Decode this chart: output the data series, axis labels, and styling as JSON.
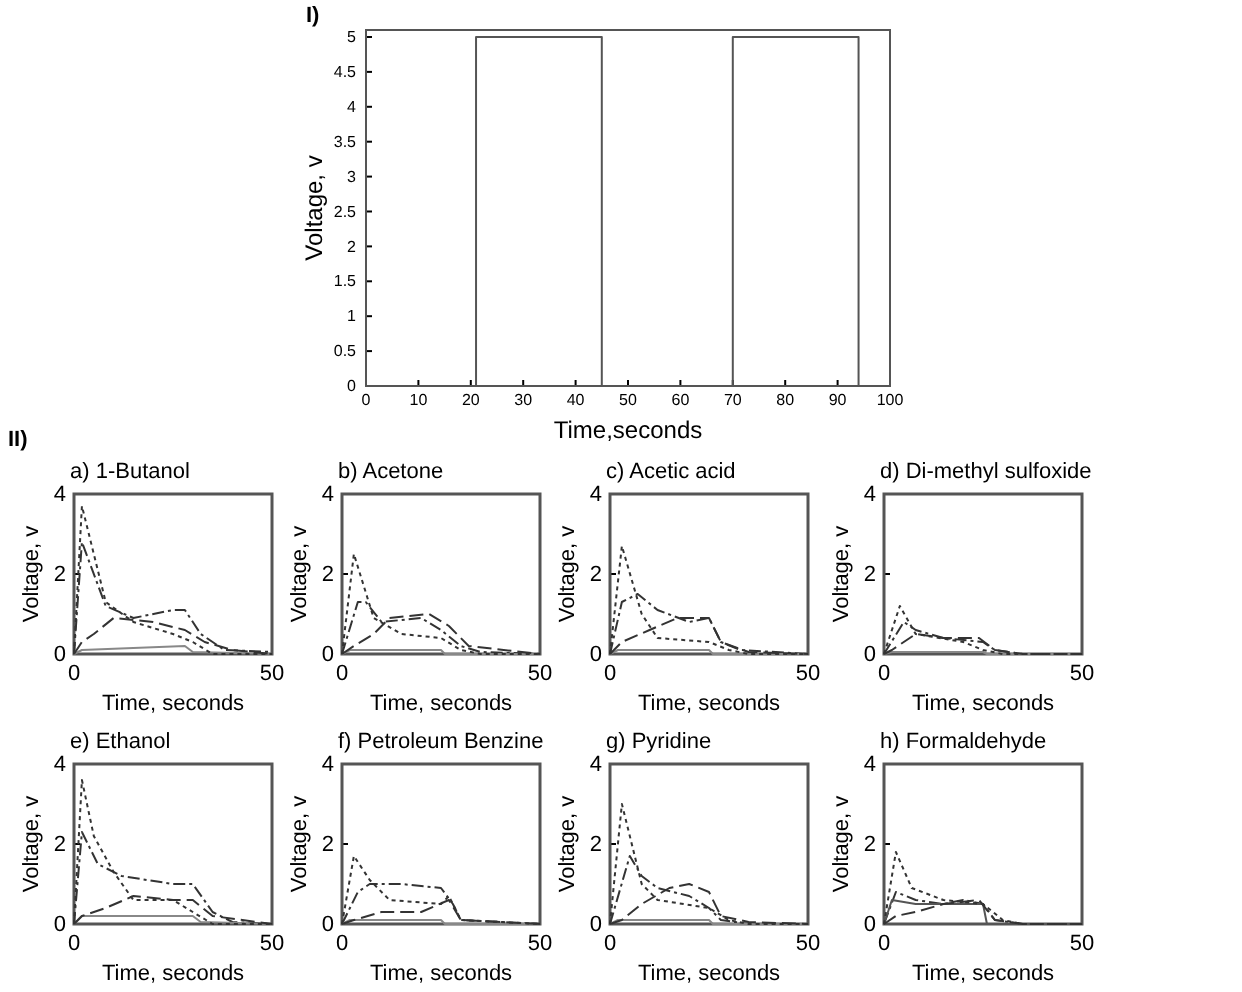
{
  "chart_data": [
    {
      "type": "line",
      "xlabel": "Time,seconds",
      "ylabel": "Voltage, v",
      "annotations": [
        "I)"
      ],
      "xlim": [
        0,
        100
      ],
      "ylim": [
        0,
        5.1
      ],
      "xticks": [
        0,
        10,
        20,
        30,
        40,
        50,
        60,
        70,
        80,
        90,
        100
      ],
      "yticks": [
        0,
        0.5,
        1,
        1.5,
        2,
        2.5,
        3,
        3.5,
        4,
        4.5,
        5
      ],
      "series": [
        {
          "color": "#555555",
          "line_style": "solid",
          "x": [
            0,
            21,
            21,
            45,
            45,
            70,
            70,
            94,
            94,
            95
          ],
          "values": [
            0,
            0,
            5,
            5,
            0,
            0,
            5,
            5,
            0,
            0
          ]
        }
      ]
    },
    {
      "type": "line",
      "title": "a)  1-Butanol",
      "xlabel": "Time, seconds",
      "ylabel": "Voltage, v",
      "annotations": [
        "II)"
      ],
      "xlim": [
        0,
        50
      ],
      "ylim": [
        0,
        4
      ],
      "xticks": [
        0,
        50
      ],
      "yticks": [
        0,
        2,
        4
      ],
      "series": [
        {
          "color": "#333333",
          "line_style": "dashdot",
          "x": [
            0,
            2,
            8,
            15,
            25,
            28,
            32,
            38,
            50
          ],
          "values": [
            0,
            2.8,
            1.2,
            0.9,
            1.1,
            1.1,
            0.5,
            0.1,
            0.05
          ]
        },
        {
          "color": "#888888",
          "line_style": "solid",
          "x": [
            0,
            2,
            28,
            30,
            50
          ],
          "values": [
            0,
            0.1,
            0.2,
            0.05,
            0
          ]
        },
        {
          "color": "#333333",
          "line_style": "dashed",
          "x": [
            0,
            2,
            5,
            10,
            20,
            28,
            33,
            40,
            50
          ],
          "values": [
            0,
            0.3,
            0.5,
            0.9,
            0.8,
            0.6,
            0.3,
            0.1,
            0
          ]
        },
        {
          "color": "#333333",
          "line_style": "dotted",
          "x": [
            0,
            2,
            8,
            15,
            25,
            30,
            35,
            50
          ],
          "values": [
            0,
            3.7,
            1.3,
            0.8,
            0.5,
            0.3,
            0,
            0
          ]
        }
      ]
    },
    {
      "type": "line",
      "title": "b)  Acetone",
      "xlabel": "Time, seconds",
      "ylabel": "Voltage, v",
      "xlim": [
        0,
        50
      ],
      "ylim": [
        0,
        4
      ],
      "xticks": [
        0,
        50
      ],
      "yticks": [
        0,
        2,
        4
      ],
      "series": [
        {
          "color": "#333333",
          "line_style": "dashdot",
          "x": [
            0,
            4,
            6,
            10,
            20,
            25,
            30,
            35,
            50
          ],
          "values": [
            0,
            1.3,
            1.3,
            0.8,
            0.9,
            0.6,
            0.2,
            0.05,
            0
          ]
        },
        {
          "color": "#888888",
          "line_style": "solid",
          "x": [
            0,
            2,
            25,
            26,
            50
          ],
          "values": [
            0,
            0.1,
            0.1,
            0,
            0
          ]
        },
        {
          "color": "#333333",
          "line_style": "dashed",
          "x": [
            0,
            3,
            8,
            12,
            22,
            27,
            32,
            50
          ],
          "values": [
            0,
            0.2,
            0.5,
            0.9,
            1.0,
            0.7,
            0.2,
            0
          ]
        },
        {
          "color": "#333333",
          "line_style": "dotted",
          "x": [
            0,
            3,
            8,
            15,
            25,
            30,
            35,
            50
          ],
          "values": [
            0,
            2.5,
            0.9,
            0.5,
            0.4,
            0.1,
            0,
            0
          ]
        }
      ]
    },
    {
      "type": "line",
      "title": "c)  Acetic acid",
      "xlabel": "Time, seconds",
      "ylabel": "Voltage, v",
      "xlim": [
        0,
        50
      ],
      "ylim": [
        0,
        4
      ],
      "xticks": [
        0,
        50
      ],
      "yticks": [
        0,
        2,
        4
      ],
      "series": [
        {
          "color": "#333333",
          "line_style": "dashdot",
          "x": [
            0,
            3,
            7,
            12,
            20,
            25,
            28,
            33,
            50
          ],
          "values": [
            0,
            1.3,
            1.5,
            1.1,
            0.8,
            0.9,
            0.3,
            0.1,
            0
          ]
        },
        {
          "color": "#888888",
          "line_style": "solid",
          "x": [
            0,
            2,
            25,
            26,
            50
          ],
          "values": [
            0,
            0.1,
            0.1,
            0,
            0
          ]
        },
        {
          "color": "#333333",
          "line_style": "dashed",
          "x": [
            0,
            3,
            10,
            17,
            25,
            28,
            35,
            50
          ],
          "values": [
            0,
            0.3,
            0.6,
            0.9,
            0.9,
            0.3,
            0.05,
            0
          ]
        },
        {
          "color": "#333333",
          "line_style": "dotted",
          "x": [
            0,
            3,
            8,
            12,
            25,
            30,
            35,
            50
          ],
          "values": [
            0,
            2.7,
            1.0,
            0.4,
            0.3,
            0.1,
            0,
            0
          ]
        }
      ]
    },
    {
      "type": "line",
      "title": "d)  Di-methyl sulfoxide",
      "xlabel": "Time, seconds",
      "ylabel": "Voltage, v",
      "xlim": [
        0,
        50
      ],
      "ylim": [
        0,
        4
      ],
      "xticks": [
        0,
        50
      ],
      "yticks": [
        0,
        2,
        4
      ],
      "series": [
        {
          "color": "#333333",
          "line_style": "dashdot",
          "x": [
            0,
            5,
            8,
            15,
            25,
            28,
            35,
            50
          ],
          "values": [
            0,
            0.8,
            0.6,
            0.4,
            0.3,
            0.1,
            0,
            0
          ]
        },
        {
          "color": "#888888",
          "line_style": "solid",
          "x": [
            0,
            2,
            25,
            26,
            50
          ],
          "values": [
            0,
            0.05,
            0.05,
            0,
            0
          ]
        },
        {
          "color": "#333333",
          "line_style": "dashed",
          "x": [
            0,
            2,
            8,
            15,
            24,
            28,
            35,
            50
          ],
          "values": [
            0,
            0.1,
            0.5,
            0.4,
            0.4,
            0.1,
            0,
            0
          ]
        },
        {
          "color": "#333333",
          "line_style": "dotted",
          "x": [
            0,
            4,
            8,
            20,
            25,
            30,
            50
          ],
          "values": [
            0,
            1.2,
            0.5,
            0.3,
            0.1,
            0,
            0
          ]
        }
      ]
    },
    {
      "type": "line",
      "title": "e)  Ethanol",
      "xlabel": "Time, seconds",
      "ylabel": "Voltage, v",
      "xlim": [
        0,
        50
      ],
      "ylim": [
        0,
        4
      ],
      "xticks": [
        0,
        50
      ],
      "yticks": [
        0,
        2,
        4
      ],
      "series": [
        {
          "color": "#333333",
          "line_style": "dashdot",
          "x": [
            0,
            2,
            6,
            12,
            25,
            30,
            35,
            40,
            50
          ],
          "values": [
            0,
            2.3,
            1.5,
            1.2,
            1.0,
            1.0,
            0.3,
            0.05,
            0
          ]
        },
        {
          "color": "#888888",
          "line_style": "solid",
          "x": [
            0,
            2,
            30,
            32,
            50
          ],
          "values": [
            0,
            0.2,
            0.2,
            0.05,
            0
          ]
        },
        {
          "color": "#333333",
          "line_style": "dashed",
          "x": [
            0,
            2,
            8,
            15,
            25,
            30,
            35,
            50
          ],
          "values": [
            0,
            0.2,
            0.4,
            0.7,
            0.6,
            0.6,
            0.2,
            0
          ]
        },
        {
          "color": "#333333",
          "line_style": "dotted",
          "x": [
            0,
            2,
            5,
            10,
            15,
            25,
            30,
            35,
            50
          ],
          "values": [
            0,
            3.6,
            2.2,
            1.3,
            0.6,
            0.6,
            0.3,
            0,
            0
          ]
        }
      ]
    },
    {
      "type": "line",
      "title": "f)  Petroleum Benzine",
      "xlabel": "Time, seconds",
      "ylabel": "Voltage, v",
      "xlim": [
        0,
        50
      ],
      "ylim": [
        0,
        4
      ],
      "xticks": [
        0,
        50
      ],
      "yticks": [
        0,
        2,
        4
      ],
      "series": [
        {
          "color": "#333333",
          "line_style": "dashdot",
          "x": [
            0,
            4,
            7,
            15,
            25,
            28,
            30,
            50
          ],
          "values": [
            0,
            0.8,
            1.0,
            1.0,
            0.9,
            0.5,
            0.1,
            0
          ]
        },
        {
          "color": "#888888",
          "line_style": "solid",
          "x": [
            0,
            2,
            25,
            26,
            50
          ],
          "values": [
            0,
            0.1,
            0.1,
            0,
            0
          ]
        },
        {
          "color": "#333333",
          "line_style": "dashed",
          "x": [
            0,
            3,
            10,
            20,
            27,
            30,
            50
          ],
          "values": [
            0,
            0.1,
            0.3,
            0.3,
            0.6,
            0.1,
            0
          ]
        },
        {
          "color": "#333333",
          "line_style": "dotted",
          "x": [
            0,
            3,
            7,
            12,
            25,
            27,
            30,
            50
          ],
          "values": [
            0,
            1.7,
            1.1,
            0.6,
            0.5,
            0.7,
            0.1,
            0
          ]
        }
      ]
    },
    {
      "type": "line",
      "title": "g)  Pyridine",
      "xlabel": "Time, seconds",
      "ylabel": "Voltage, v",
      "xlim": [
        0,
        50
      ],
      "ylim": [
        0,
        4
      ],
      "xticks": [
        0,
        50
      ],
      "yticks": [
        0,
        2,
        4
      ],
      "series": [
        {
          "color": "#333333",
          "line_style": "dashdot",
          "x": [
            0,
            5,
            8,
            12,
            20,
            25,
            28,
            35,
            50
          ],
          "values": [
            0,
            1.7,
            1.2,
            0.9,
            0.7,
            0.4,
            0.1,
            0,
            0
          ]
        },
        {
          "color": "#888888",
          "line_style": "solid",
          "x": [
            0,
            2,
            25,
            26,
            50
          ],
          "values": [
            0,
            0.1,
            0.1,
            0,
            0
          ]
        },
        {
          "color": "#333333",
          "line_style": "dashed",
          "x": [
            0,
            3,
            8,
            15,
            20,
            25,
            28,
            35,
            50
          ],
          "values": [
            0,
            0.1,
            0.5,
            0.9,
            1.0,
            0.8,
            0.2,
            0.05,
            0
          ]
        },
        {
          "color": "#333333",
          "line_style": "dotted",
          "x": [
            0,
            3,
            8,
            12,
            25,
            30,
            35,
            50
          ],
          "values": [
            0,
            3.0,
            1.0,
            0.6,
            0.4,
            0.1,
            0,
            0
          ]
        }
      ]
    },
    {
      "type": "line",
      "title": "h)  Formaldehyde",
      "xlabel": "Time, seconds",
      "ylabel": "Voltage, v",
      "xlim": [
        0,
        50
      ],
      "ylim": [
        0,
        4
      ],
      "xticks": [
        0,
        50
      ],
      "yticks": [
        0,
        2,
        4
      ],
      "series": [
        {
          "color": "#333333",
          "line_style": "dashdot",
          "x": [
            0,
            3,
            8,
            15,
            20,
            25,
            28,
            35,
            50
          ],
          "values": [
            0,
            0.8,
            0.6,
            0.5,
            0.6,
            0.5,
            0.1,
            0,
            0
          ]
        },
        {
          "color": "#555555",
          "line_style": "solid",
          "x": [
            0,
            2,
            8,
            20,
            25,
            26,
            50
          ],
          "values": [
            0,
            0.6,
            0.5,
            0.5,
            0.5,
            0,
            0
          ]
        },
        {
          "color": "#333333",
          "line_style": "dashed",
          "x": [
            0,
            3,
            8,
            15,
            24,
            28,
            35,
            50
          ],
          "values": [
            0,
            0.2,
            0.3,
            0.5,
            0.6,
            0.1,
            0,
            0
          ]
        },
        {
          "color": "#333333",
          "line_style": "dotted",
          "x": [
            0,
            3,
            7,
            15,
            25,
            30,
            35,
            50
          ],
          "values": [
            0,
            1.8,
            0.9,
            0.6,
            0.5,
            0.1,
            0,
            0
          ]
        }
      ]
    }
  ]
}
